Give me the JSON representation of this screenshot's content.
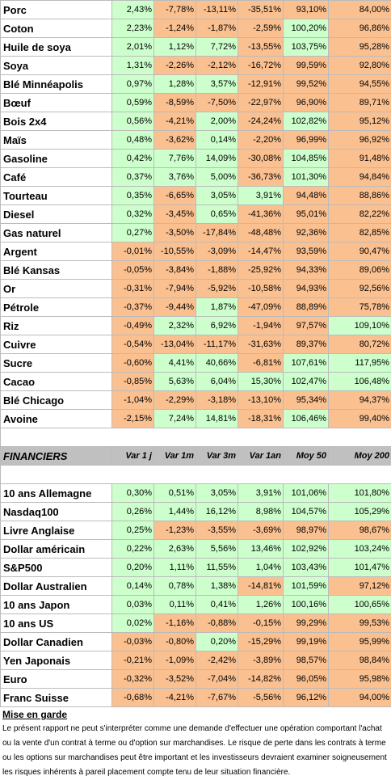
{
  "commodities": [
    {
      "name": "Porc",
      "v": [
        "2,43%",
        "-7,78%",
        "-13,11%",
        "-35,51%",
        "93,10%",
        "84,00%"
      ],
      "c": [
        "g",
        "o",
        "o",
        "o",
        "o",
        "o"
      ]
    },
    {
      "name": "Coton",
      "v": [
        "2,23%",
        "-1,24%",
        "-1,87%",
        "-2,59%",
        "100,20%",
        "96,86%"
      ],
      "c": [
        "g",
        "o",
        "o",
        "o",
        "g",
        "o"
      ]
    },
    {
      "name": "Huile de soya",
      "v": [
        "2,01%",
        "1,12%",
        "7,72%",
        "-13,55%",
        "103,75%",
        "95,28%"
      ],
      "c": [
        "g",
        "g",
        "g",
        "o",
        "g",
        "o"
      ]
    },
    {
      "name": "Soya",
      "v": [
        "1,31%",
        "-2,26%",
        "-2,12%",
        "-16,72%",
        "99,59%",
        "92,80%"
      ],
      "c": [
        "g",
        "o",
        "o",
        "o",
        "o",
        "o"
      ]
    },
    {
      "name": "Blé Minnéapolis",
      "v": [
        "0,97%",
        "1,28%",
        "3,57%",
        "-12,91%",
        "99,52%",
        "94,55%"
      ],
      "c": [
        "g",
        "g",
        "g",
        "o",
        "o",
        "o"
      ]
    },
    {
      "name": "Bœuf",
      "v": [
        "0,59%",
        "-8,59%",
        "-7,50%",
        "-22,97%",
        "96,90%",
        "89,71%"
      ],
      "c": [
        "g",
        "o",
        "o",
        "o",
        "o",
        "o"
      ]
    },
    {
      "name": "Bois 2x4",
      "v": [
        "0,56%",
        "-4,21%",
        "2,00%",
        "-24,24%",
        "102,82%",
        "95,12%"
      ],
      "c": [
        "g",
        "o",
        "g",
        "o",
        "g",
        "o"
      ]
    },
    {
      "name": "Maïs",
      "v": [
        "0,48%",
        "-3,62%",
        "0,14%",
        "-2,20%",
        "96,99%",
        "96,92%"
      ],
      "c": [
        "g",
        "o",
        "g",
        "o",
        "o",
        "o"
      ]
    },
    {
      "name": "Gasoline",
      "v": [
        "0,42%",
        "7,76%",
        "14,09%",
        "-30,08%",
        "104,85%",
        "91,48%"
      ],
      "c": [
        "g",
        "g",
        "g",
        "o",
        "g",
        "o"
      ]
    },
    {
      "name": "Café",
      "v": [
        "0,37%",
        "3,76%",
        "5,00%",
        "-36,73%",
        "101,30%",
        "94,84%"
      ],
      "c": [
        "g",
        "g",
        "g",
        "o",
        "g",
        "o"
      ]
    },
    {
      "name": "Tourteau",
      "v": [
        "0,35%",
        "-6,65%",
        "3,05%",
        "3,91%",
        "94,48%",
        "88,86%"
      ],
      "c": [
        "g",
        "o",
        "g",
        "g",
        "o",
        "o"
      ]
    },
    {
      "name": "Diesel",
      "v": [
        "0,32%",
        "-3,45%",
        "0,65%",
        "-41,36%",
        "95,01%",
        "82,22%"
      ],
      "c": [
        "g",
        "o",
        "g",
        "o",
        "o",
        "o"
      ]
    },
    {
      "name": "Gas naturel",
      "v": [
        "0,27%",
        "-3,50%",
        "-17,84%",
        "-48,48%",
        "92,36%",
        "82,85%"
      ],
      "c": [
        "g",
        "o",
        "o",
        "o",
        "o",
        "o"
      ]
    },
    {
      "name": "Argent",
      "v": [
        "-0,01%",
        "-10,55%",
        "-3,09%",
        "-14,47%",
        "93,59%",
        "90,47%"
      ],
      "c": [
        "o",
        "o",
        "o",
        "o",
        "o",
        "o"
      ]
    },
    {
      "name": "Blé Kansas",
      "v": [
        "-0,05%",
        "-3,84%",
        "-1,88%",
        "-25,92%",
        "94,33%",
        "89,06%"
      ],
      "c": [
        "o",
        "o",
        "o",
        "o",
        "o",
        "o"
      ]
    },
    {
      "name": "Or",
      "v": [
        "-0,31%",
        "-7,94%",
        "-5,92%",
        "-10,58%",
        "94,93%",
        "92,56%"
      ],
      "c": [
        "o",
        "o",
        "o",
        "o",
        "o",
        "o"
      ]
    },
    {
      "name": "Pétrole",
      "v": [
        "-0,37%",
        "-9,44%",
        "1,87%",
        "-47,09%",
        "88,89%",
        "75,78%"
      ],
      "c": [
        "o",
        "o",
        "g",
        "o",
        "o",
        "o"
      ]
    },
    {
      "name": "Riz",
      "v": [
        "-0,49%",
        "2,32%",
        "6,92%",
        "-1,94%",
        "97,57%",
        "109,10%"
      ],
      "c": [
        "o",
        "g",
        "g",
        "o",
        "o",
        "g"
      ]
    },
    {
      "name": "Cuivre",
      "v": [
        "-0,54%",
        "-13,04%",
        "-11,17%",
        "-31,63%",
        "89,37%",
        "80,72%"
      ],
      "c": [
        "o",
        "o",
        "o",
        "o",
        "o",
        "o"
      ]
    },
    {
      "name": "Sucre",
      "v": [
        "-0,60%",
        "4,41%",
        "40,66%",
        "-6,81%",
        "107,61%",
        "117,95%"
      ],
      "c": [
        "o",
        "g",
        "g",
        "o",
        "g",
        "g"
      ]
    },
    {
      "name": "Cacao",
      "v": [
        "-0,85%",
        "5,63%",
        "6,04%",
        "15,30%",
        "102,47%",
        "106,48%"
      ],
      "c": [
        "o",
        "g",
        "g",
        "g",
        "g",
        "g"
      ]
    },
    {
      "name": "Blé Chicago",
      "v": [
        "-1,04%",
        "-2,29%",
        "-3,18%",
        "-13,10%",
        "95,34%",
        "94,37%"
      ],
      "c": [
        "o",
        "o",
        "o",
        "o",
        "o",
        "o"
      ]
    },
    {
      "name": "Avoine",
      "v": [
        "-2,15%",
        "7,24%",
        "14,81%",
        "-18,31%",
        "106,46%",
        "99,40%"
      ],
      "c": [
        "o",
        "g",
        "g",
        "o",
        "g",
        "o"
      ]
    }
  ],
  "financial_header": {
    "title": "FINANCIERS",
    "cols": [
      "Var 1 j",
      "Var 1m",
      "Var 3m",
      "Var 1an",
      "Moy 50",
      "Moy 200"
    ]
  },
  "financials": [
    {
      "name": "10 ans Allemagne",
      "v": [
        "0,30%",
        "0,51%",
        "3,05%",
        "3,91%",
        "101,06%",
        "101,80%"
      ],
      "c": [
        "g",
        "g",
        "g",
        "g",
        "g",
        "g"
      ]
    },
    {
      "name": "Nasdaq100",
      "v": [
        "0,26%",
        "1,44%",
        "16,12%",
        "8,98%",
        "104,57%",
        "105,29%"
      ],
      "c": [
        "g",
        "g",
        "g",
        "g",
        "g",
        "g"
      ]
    },
    {
      "name": "Livre Anglaise",
      "v": [
        "0,25%",
        "-1,23%",
        "-3,55%",
        "-3,69%",
        "98,97%",
        "98,67%"
      ],
      "c": [
        "g",
        "o",
        "o",
        "o",
        "o",
        "o"
      ]
    },
    {
      "name": "Dollar américain",
      "v": [
        "0,22%",
        "2,63%",
        "5,56%",
        "13,46%",
        "102,92%",
        "103,24%"
      ],
      "c": [
        "g",
        "g",
        "g",
        "g",
        "g",
        "g"
      ]
    },
    {
      "name": "S&P500",
      "v": [
        "0,20%",
        "1,11%",
        "11,55%",
        "1,04%",
        "103,43%",
        "101,47%"
      ],
      "c": [
        "g",
        "g",
        "g",
        "g",
        "g",
        "g"
      ]
    },
    {
      "name": "Dollar Australien",
      "v": [
        "0,14%",
        "0,78%",
        "1,38%",
        "-14,81%",
        "101,59%",
        "97,12%"
      ],
      "c": [
        "g",
        "g",
        "g",
        "o",
        "g",
        "o"
      ]
    },
    {
      "name": "10 ans Japon",
      "v": [
        "0,03%",
        "0,11%",
        "0,41%",
        "1,26%",
        "100,16%",
        "100,65%"
      ],
      "c": [
        "g",
        "g",
        "g",
        "g",
        "g",
        "g"
      ]
    },
    {
      "name": "10 ans US",
      "v": [
        "0,02%",
        "-1,16%",
        "-0,88%",
        "-0,15%",
        "99,29%",
        "99,53%"
      ],
      "c": [
        "g",
        "o",
        "o",
        "o",
        "o",
        "o"
      ]
    },
    {
      "name": "Dollar Canadien",
      "v": [
        "-0,03%",
        "-0,80%",
        "0,20%",
        "-15,29%",
        "99,19%",
        "95,99%"
      ],
      "c": [
        "o",
        "o",
        "g",
        "o",
        "o",
        "o"
      ]
    },
    {
      "name": "Yen Japonais",
      "v": [
        "-0,21%",
        "-1,09%",
        "-2,42%",
        "-3,89%",
        "98,57%",
        "98,84%"
      ],
      "c": [
        "o",
        "o",
        "o",
        "o",
        "o",
        "o"
      ]
    },
    {
      "name": "Euro",
      "v": [
        "-0,32%",
        "-3,52%",
        "-7,04%",
        "-14,82%",
        "96,05%",
        "95,98%"
      ],
      "c": [
        "o",
        "o",
        "o",
        "o",
        "o",
        "o"
      ]
    },
    {
      "name": "Franc Suisse",
      "v": [
        "-0,68%",
        "-4,21%",
        "-7,67%",
        "-5,56%",
        "96,12%",
        "94,00%"
      ],
      "c": [
        "o",
        "o",
        "o",
        "o",
        "o",
        "o"
      ]
    }
  ],
  "disclaimer": {
    "title": "Mise en garde",
    "body": "Le présent rapport ne peut s'interpréter comme une demande d'effectuer une opération comportant l'achat ou la vente d'un contrat à terme ou d'option sur marchandises. Le risque de perte dans les contrats à terme ou les options sur marchandises peut être important et les investisseurs devraient examiner soigneusement les risques inhérents à pareil placement compte tenu de leur situation financière."
  },
  "colors": {
    "green": "#ccffcc",
    "orange": "#fac090",
    "header": "#c0c0c0"
  }
}
